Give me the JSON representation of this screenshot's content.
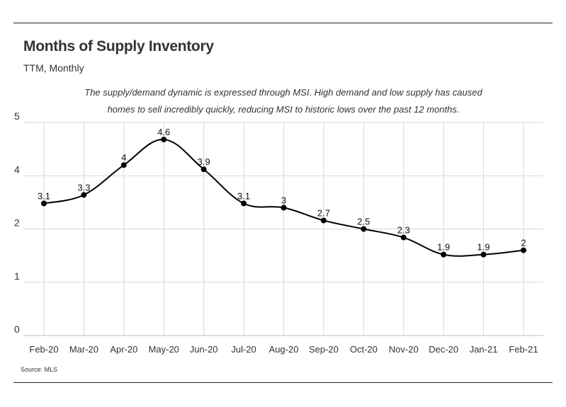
{
  "header": {
    "title": "Months of Supply Inventory",
    "subtitle": "TTM, Monthly"
  },
  "note": {
    "line1": "The supply/demand dynamic is expressed through MSI. High demand and low supply has caused",
    "line2": "homes to sell incredibly quickly, reducing MSI to historic lows over the past 12 months."
  },
  "footer": {
    "source": "Source:  MLS"
  },
  "chart_data": {
    "type": "line",
    "title": "Months of Supply Inventory",
    "subtitle": "TTM, Monthly",
    "xlabel": "",
    "ylabel": "",
    "categories": [
      "Feb-20",
      "Mar-20",
      "Apr-20",
      "May-20",
      "Jun-20",
      "Jul-20",
      "Aug-20",
      "Sep-20",
      "Oct-20",
      "Nov-20",
      "Dec-20",
      "Jan-21",
      "Feb-21"
    ],
    "values": [
      3.1,
      3.3,
      4,
      4.6,
      3.9,
      3.1,
      3,
      2.7,
      2.5,
      2.3,
      1.9,
      1.9,
      2
    ],
    "data_labels": [
      "3.1",
      "3.3",
      "4",
      "4.6",
      "3.9",
      "3.1",
      "3",
      "2.7",
      "2.5",
      "2.3",
      "1.9",
      "1.9",
      "2"
    ],
    "y_ticks": [
      0,
      1,
      2,
      4,
      5
    ],
    "y_tick_labels": [
      "0",
      "1",
      "2",
      "4",
      "5"
    ],
    "grid": true,
    "legend": "none",
    "line_color": "#000000",
    "grid_color": "#d9d9d9"
  }
}
